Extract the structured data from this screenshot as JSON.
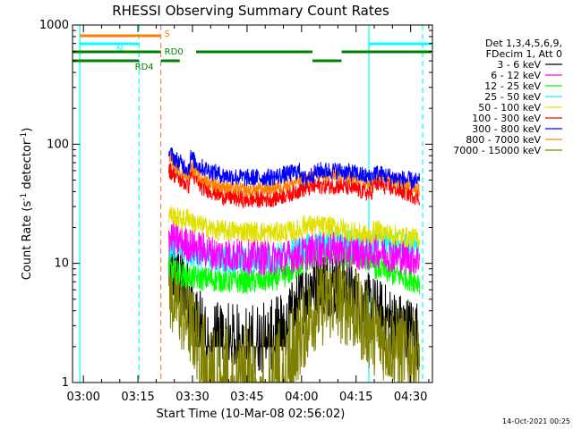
{
  "chart_data": {
    "type": "line",
    "title": "RHESSI Observing Summary Count Rates",
    "xlabel": "Start Time (10-Mar-08 02:56:02)",
    "ylabel_parts": [
      "Count Rate (s",
      "-1",
      " detector",
      "-1",
      ")"
    ],
    "yscale": "log",
    "ylim": [
      1,
      1000
    ],
    "xlim_minutes": [
      -3,
      96
    ],
    "x_unit": "minutes after 03:00",
    "x_ticks": [
      {
        "label": "03:00",
        "value": 0
      },
      {
        "label": "03:15",
        "value": 15
      },
      {
        "label": "03:30",
        "value": 30
      },
      {
        "label": "03:45",
        "value": 45
      },
      {
        "label": "04:00",
        "value": 60
      },
      {
        "label": "04:15",
        "value": 75
      },
      {
        "label": "04:30",
        "value": 90
      }
    ],
    "y_ticks": [
      {
        "label": "1",
        "value": 1
      },
      {
        "label": "10",
        "value": 10
      },
      {
        "label": "100",
        "value": 100
      },
      {
        "label": "1000",
        "value": 1000
      }
    ],
    "legend_header": [
      "Det 1,3,4,5,6,9,",
      "FDecim 1, Att 0"
    ],
    "legend_placement": "right",
    "timestamp": "14-Oct-2021 00:25",
    "data_start_minutes": 23.5,
    "data_end_minutes": 92.5,
    "series": [
      {
        "name": "3 - 6 keV",
        "color": "#000000",
        "points": [
          [
            23.5,
            8.5
          ],
          [
            26,
            8
          ],
          [
            28,
            6
          ],
          [
            30,
            4.5
          ],
          [
            32,
            3
          ],
          [
            36,
            2.4
          ],
          [
            45,
            2.3
          ],
          [
            52,
            2.5
          ],
          [
            56,
            3.2
          ],
          [
            60,
            4.8
          ],
          [
            63,
            7
          ],
          [
            68,
            7
          ],
          [
            73,
            6
          ],
          [
            76,
            4.5
          ],
          [
            80,
            4
          ],
          [
            86,
            3
          ],
          [
            92.5,
            2.5
          ]
        ],
        "noise": 0.1,
        "floor": 2,
        "floor_from": 30,
        "floor_to": 56
      },
      {
        "name": "6 - 12 keV",
        "color": "#ff00ff",
        "points": [
          [
            23.5,
            17
          ],
          [
            27,
            15
          ],
          [
            30,
            14
          ],
          [
            36,
            12
          ],
          [
            45,
            11.5
          ],
          [
            52,
            11
          ],
          [
            56,
            11.2
          ],
          [
            60,
            12
          ],
          [
            65,
            13
          ],
          [
            70,
            13
          ],
          [
            75,
            12.5
          ],
          [
            79,
            12
          ],
          [
            80,
            13
          ],
          [
            86,
            11.5
          ],
          [
            92.5,
            11
          ]
        ],
        "noise": 0.05
      },
      {
        "name": "12 - 25 keV",
        "color": "#00ff00",
        "points": [
          [
            23.5,
            9
          ],
          [
            27,
            8
          ],
          [
            30,
            7.6
          ],
          [
            36,
            7.3
          ],
          [
            45,
            7
          ],
          [
            52,
            7.3
          ],
          [
            56,
            8
          ],
          [
            60,
            10
          ],
          [
            65,
            12
          ],
          [
            70,
            12
          ],
          [
            75,
            11.5
          ],
          [
            79,
            11
          ],
          [
            80,
            9.5
          ],
          [
            86,
            8
          ],
          [
            92.5,
            7
          ]
        ],
        "noise": 0.035
      },
      {
        "name": "25 - 50 keV",
        "color": "#00ffff",
        "points": [
          [
            23.5,
            14
          ],
          [
            27,
            13
          ],
          [
            30,
            12
          ],
          [
            36,
            11
          ],
          [
            45,
            10.5
          ],
          [
            52,
            11
          ],
          [
            56,
            12
          ],
          [
            60,
            13
          ],
          [
            65,
            14.5
          ],
          [
            70,
            15
          ],
          [
            75,
            14
          ],
          [
            79,
            13
          ],
          [
            80,
            16
          ],
          [
            86,
            14
          ],
          [
            92.5,
            13.5
          ]
        ],
        "noise": 0.04
      },
      {
        "name": "50 - 100 keV",
        "color": "#e0e000",
        "points": [
          [
            23.5,
            26
          ],
          [
            26,
            24
          ],
          [
            28,
            23
          ],
          [
            29,
            25
          ],
          [
            30,
            22
          ],
          [
            36,
            19
          ],
          [
            45,
            18.5
          ],
          [
            52,
            18
          ],
          [
            56,
            18.5
          ],
          [
            60,
            19
          ],
          [
            60.3,
            21
          ],
          [
            65,
            20.5
          ],
          [
            70,
            20
          ],
          [
            75,
            18
          ],
          [
            79,
            17
          ],
          [
            80,
            19
          ],
          [
            86,
            17
          ],
          [
            92.5,
            16
          ]
        ],
        "noise": 0.03
      },
      {
        "name": "100 - 300 keV",
        "color": "#ff0000",
        "points": [
          [
            23.5,
            62
          ],
          [
            26,
            52
          ],
          [
            29,
            45
          ],
          [
            29.4,
            60
          ],
          [
            32,
            45
          ],
          [
            38,
            37
          ],
          [
            45,
            34
          ],
          [
            52,
            35
          ],
          [
            56,
            38
          ],
          [
            60,
            42
          ],
          [
            65,
            45
          ],
          [
            70,
            45
          ],
          [
            75,
            42
          ],
          [
            79,
            38
          ],
          [
            80,
            47
          ],
          [
            86,
            42
          ],
          [
            92.5,
            36
          ]
        ],
        "noise": 0.025
      },
      {
        "name": "300 - 800 keV",
        "color": "#0000ff",
        "points": [
          [
            23.5,
            85
          ],
          [
            26,
            72
          ],
          [
            29,
            62
          ],
          [
            29.4,
            78
          ],
          [
            32,
            65
          ],
          [
            38,
            55
          ],
          [
            45,
            52
          ],
          [
            52,
            53
          ],
          [
            56,
            56
          ],
          [
            60,
            60
          ],
          [
            60.3,
            50
          ],
          [
            65,
            60
          ],
          [
            70,
            60
          ],
          [
            75,
            57
          ],
          [
            79,
            52
          ],
          [
            80,
            58
          ],
          [
            86,
            52
          ],
          [
            92.5,
            48
          ]
        ],
        "noise": 0.025
      },
      {
        "name": "800 - 7000 keV",
        "color": "#ff8000",
        "points": [
          [
            23.5,
            80
          ],
          [
            26,
            63
          ],
          [
            29,
            55
          ],
          [
            29.4,
            68
          ],
          [
            32,
            52
          ],
          [
            38,
            44
          ],
          [
            45,
            41
          ],
          [
            52,
            43
          ],
          [
            56,
            46
          ],
          [
            60,
            50
          ],
          [
            65,
            55
          ],
          [
            70,
            56
          ],
          [
            75,
            52
          ],
          [
            79,
            47
          ],
          [
            80,
            56
          ],
          [
            86,
            50
          ],
          [
            92.5,
            42
          ]
        ],
        "noise": 0.02
      },
      {
        "name": "7000 - 15000 keV",
        "color": "#808000",
        "points": [
          [
            23.5,
            6
          ],
          [
            27,
            4
          ],
          [
            30,
            2.8
          ],
          [
            33,
            1.8
          ],
          [
            36,
            1.4
          ],
          [
            45,
            1.3
          ],
          [
            52,
            1.4
          ],
          [
            56,
            1.7
          ],
          [
            60,
            2.6
          ],
          [
            63,
            4
          ],
          [
            68,
            5
          ],
          [
            73,
            4.5
          ],
          [
            76,
            3.5
          ],
          [
            80,
            2.6
          ],
          [
            86,
            2
          ],
          [
            92.5,
            1.6
          ]
        ],
        "noise": 0.12,
        "floor": 1,
        "floor_from": 33,
        "floor_to": 58
      }
    ],
    "vlines": [
      {
        "x": -1,
        "color": "#00ffff",
        "style": "solid"
      },
      {
        "x": 15.3,
        "color": "#00ffff",
        "style": "dashed"
      },
      {
        "x": 21.3,
        "color": "#ff8040",
        "style": "dashed"
      },
      {
        "x": 78.5,
        "color": "#00ffff",
        "style": "solid"
      },
      {
        "x": 93.3,
        "color": "#00ffff",
        "style": "dashed"
      }
    ],
    "flag_bars": [
      {
        "label": "S",
        "color": "#ff8000",
        "y": 1.2,
        "segments": [
          [
            -1,
            21.3
          ]
        ]
      },
      {
        "label": "N",
        "color": "#00ffff",
        "y": 2.1,
        "segments": [
          [
            -1,
            15.3
          ],
          [
            78.5,
            96
          ]
        ]
      },
      {
        "label": "RD0",
        "color": "#008000",
        "y": 3,
        "segments": [
          [
            -3,
            21.3
          ],
          [
            31,
            63
          ],
          [
            71,
            96
          ]
        ]
      },
      {
        "label": "RD4",
        "color": "#008000",
        "y": 4,
        "segments": [
          [
            -3,
            15.3
          ],
          [
            21.3,
            26.5
          ],
          [
            63,
            71
          ]
        ]
      }
    ]
  }
}
